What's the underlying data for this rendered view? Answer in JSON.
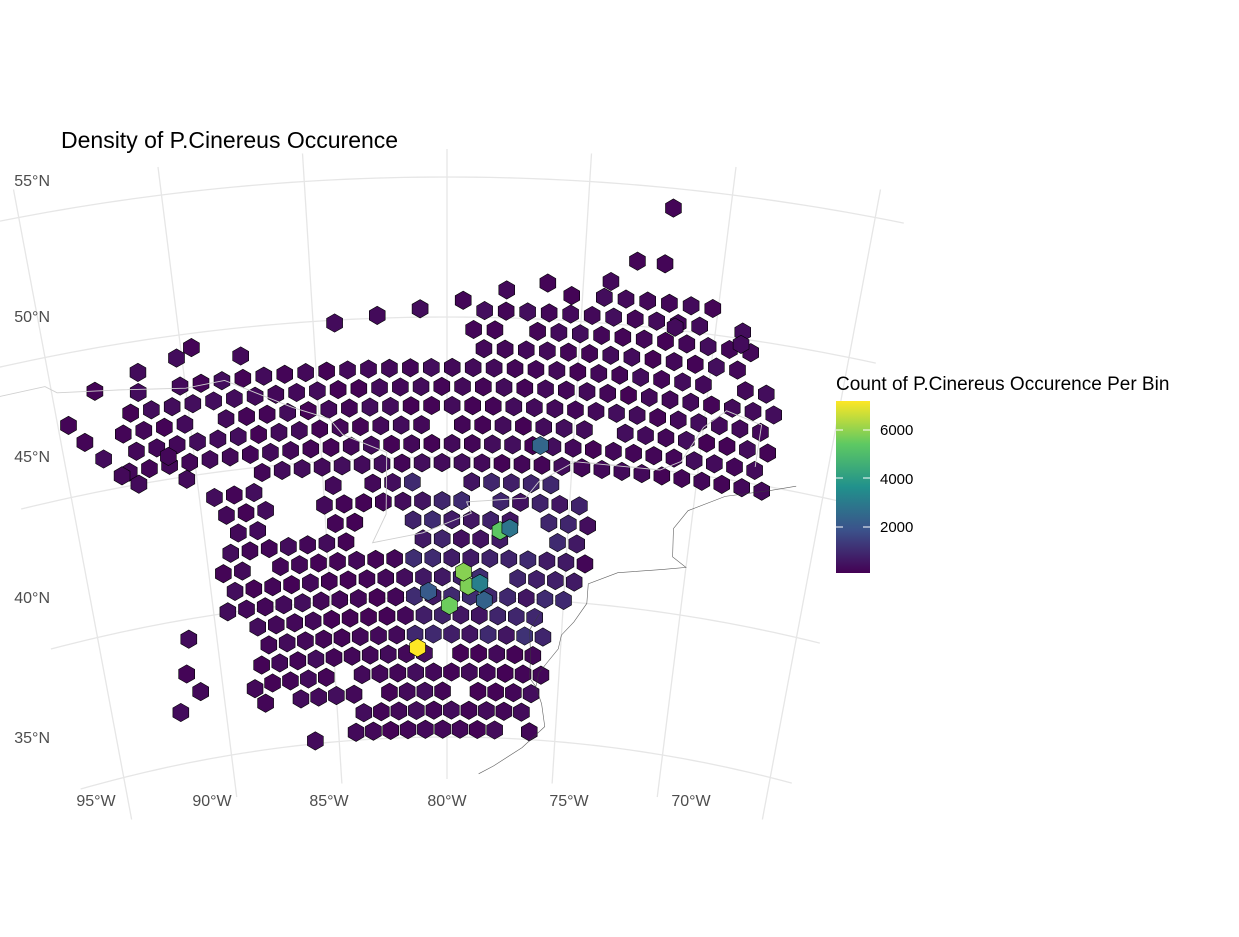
{
  "chart_data": {
    "type": "heatmap",
    "title": "Density of P.Cinereus Occurence",
    "xlabel": "",
    "ylabel": "",
    "x_ticks": [
      "95°W",
      "90°W",
      "85°W",
      "80°W",
      "75°W",
      "70°W"
    ],
    "y_ticks": [
      "35°N",
      "40°N",
      "45°N",
      "50°N",
      "55°N"
    ],
    "xlim": [
      -97,
      -66
    ],
    "ylim": [
      33.5,
      55.5
    ],
    "colorscale": "viridis",
    "colors": {
      "low": "#440154",
      "mid_low": "#3b528b",
      "mid": "#21918c",
      "mid_high": "#5ec962",
      "high": "#fde725"
    },
    "legend": {
      "title": "Count of P.Cinereus Occurence Per Bin",
      "ticks": [
        "2000",
        "4000",
        "6000"
      ],
      "range": [
        0,
        7000
      ],
      "position": "right"
    },
    "grid": true,
    "hotspots": [
      {
        "lon": -81.3,
        "lat": 38.2,
        "count": 7000
      },
      {
        "lon": -79.1,
        "lat": 40.4,
        "count": 5600
      },
      {
        "lon": -79.3,
        "lat": 40.9,
        "count": 5700
      },
      {
        "lon": -79.9,
        "lat": 39.7,
        "count": 5400
      },
      {
        "lon": -77.8,
        "lat": 42.4,
        "count": 5200
      },
      {
        "lon": -78.6,
        "lat": 40.5,
        "count": 3000
      },
      {
        "lon": -77.4,
        "lat": 42.5,
        "count": 2700
      },
      {
        "lon": -76.3,
        "lat": 45.5,
        "count": 2300
      },
      {
        "lon": -80.8,
        "lat": 40.2,
        "count": 2000
      },
      {
        "lon": -78.4,
        "lat": 39.9,
        "count": 2200
      }
    ],
    "bins": [
      {
        "lon": -95.0,
        "lat": 34.8,
        "count": 150
      },
      {
        "lon": -86.1,
        "lat": 35.1,
        "count": 220
      },
      {
        "lon": -72.0,
        "lat": 54.3,
        "count": 90
      },
      {
        "lon": -73.1,
        "lat": 52.3,
        "count": 80
      },
      {
        "lon": -72.1,
        "lat": 52.3,
        "count": 80
      }
    ]
  }
}
